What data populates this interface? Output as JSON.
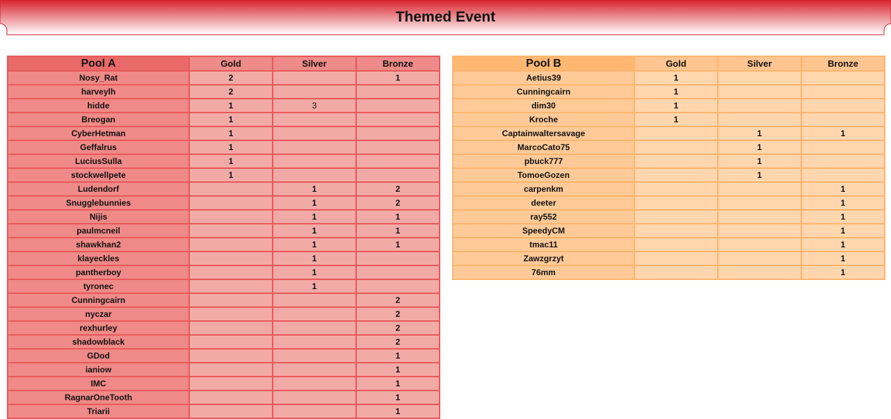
{
  "header": {
    "title": "Themed Event"
  },
  "tables": [
    {
      "columns": [
        "Pool A",
        "Gold",
        "Silver",
        "Bronze"
      ],
      "rows": [
        [
          "Nosy_Rat",
          2,
          null,
          1
        ],
        [
          "harveylh",
          2,
          null,
          null
        ],
        [
          "hidde",
          1,
          3,
          null
        ],
        [
          "Breogan",
          1,
          null,
          null
        ],
        [
          "CyberHetman",
          1,
          null,
          null
        ],
        [
          "Geffalrus",
          1,
          null,
          null
        ],
        [
          "LuciusSulla",
          1,
          null,
          null
        ],
        [
          "stockwellpete",
          1,
          null,
          null
        ],
        [
          "Ludendorf",
          null,
          1,
          2
        ],
        [
          "Snugglebunnies",
          null,
          1,
          2
        ],
        [
          "Nijis",
          null,
          1,
          1
        ],
        [
          "paulmcneil",
          null,
          1,
          1
        ],
        [
          "shawkhan2",
          null,
          1,
          1
        ],
        [
          "klayeckles",
          null,
          1,
          null
        ],
        [
          "pantherboy",
          null,
          1,
          null
        ],
        [
          "tyronec",
          null,
          1,
          null
        ],
        [
          "Cunningcairn",
          null,
          null,
          2
        ],
        [
          "nyczar",
          null,
          null,
          2
        ],
        [
          "rexhurley",
          null,
          null,
          2
        ],
        [
          "shadowblack",
          null,
          null,
          2
        ],
        [
          "GDod",
          null,
          null,
          1
        ],
        [
          "ianiow",
          null,
          null,
          1
        ],
        [
          "IMC",
          null,
          null,
          1
        ],
        [
          "RagnarOneTooth",
          null,
          null,
          1
        ],
        [
          "Triarii",
          null,
          null,
          1
        ]
      ]
    },
    {
      "columns": [
        "Pool B",
        "Gold",
        "Silver",
        "Bronze"
      ],
      "rows": [
        [
          "Aetius39",
          1,
          null,
          null
        ],
        [
          "Cunningcairn",
          1,
          null,
          null
        ],
        [
          "dim30",
          1,
          null,
          null
        ],
        [
          "Kroche",
          1,
          null,
          null
        ],
        [
          "Captainwaltersavage",
          null,
          1,
          1
        ],
        [
          "MarcoCato75",
          null,
          1,
          null
        ],
        [
          "pbuck777",
          null,
          1,
          null
        ],
        [
          "TomoeGozen",
          null,
          1,
          null
        ],
        [
          "carpenkm",
          null,
          null,
          1
        ],
        [
          "deeter",
          null,
          null,
          1
        ],
        [
          "ray552",
          null,
          null,
          1
        ],
        [
          "SpeedyCM",
          null,
          null,
          1
        ],
        [
          "tmac11",
          null,
          null,
          1
        ],
        [
          "Zawzgrzyt",
          null,
          null,
          1
        ],
        [
          "76mm",
          null,
          null,
          1
        ]
      ]
    }
  ]
}
